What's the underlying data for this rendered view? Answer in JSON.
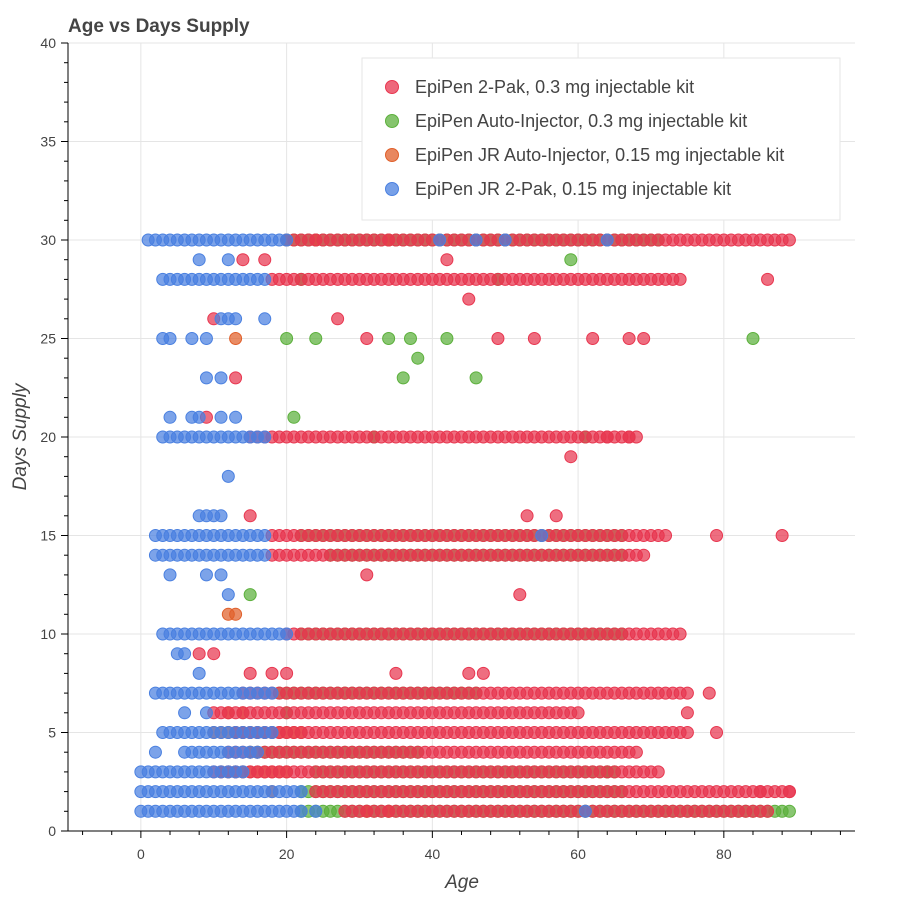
{
  "chart_data": {
    "type": "scatter",
    "title": "Age vs Days Supply",
    "xlabel": "Age",
    "ylabel": "Days Supply",
    "xlim": [
      -10,
      98
    ],
    "ylim": [
      0,
      40
    ],
    "x_ticks": [
      0,
      20,
      40,
      60,
      80
    ],
    "y_ticks": [
      0,
      5,
      10,
      15,
      20,
      25,
      30,
      35,
      40
    ],
    "grid": true,
    "legend_position": "top-right",
    "series": [
      {
        "name": "EpiPen 2-Pak, 0.3 mg injectable kit",
        "color": "#e8364f",
        "bands": [
          {
            "y": 30,
            "from": 20,
            "to": 89
          },
          {
            "y": 28,
            "from": 18,
            "to": 74
          },
          {
            "y": 20,
            "from": 15,
            "to": 68
          },
          {
            "y": 15,
            "from": 18,
            "to": 72
          },
          {
            "y": 14,
            "from": 18,
            "to": 69
          },
          {
            "y": 10,
            "from": 20,
            "to": 74
          },
          {
            "y": 7,
            "from": 14,
            "to": 75
          },
          {
            "y": 6,
            "from": 10,
            "to": 60
          },
          {
            "y": 5,
            "from": 13,
            "to": 75
          },
          {
            "y": 4,
            "from": 12,
            "to": 68
          },
          {
            "y": 3,
            "from": 10,
            "to": 71
          },
          {
            "y": 2,
            "from": 24,
            "to": 89
          },
          {
            "y": 1,
            "from": 28,
            "to": 86
          }
        ],
        "points": [
          {
            "x": 69,
            "y": 33
          },
          {
            "x": 14,
            "y": 29
          },
          {
            "x": 17,
            "y": 29
          },
          {
            "x": 42,
            "y": 29
          },
          {
            "x": 45,
            "y": 27
          },
          {
            "x": 10,
            "y": 26
          },
          {
            "x": 27,
            "y": 26
          },
          {
            "x": 86,
            "y": 28
          },
          {
            "x": 13,
            "y": 23
          },
          {
            "x": 31,
            "y": 25
          },
          {
            "x": 49,
            "y": 25
          },
          {
            "x": 54,
            "y": 25
          },
          {
            "x": 62,
            "y": 25
          },
          {
            "x": 67,
            "y": 25
          },
          {
            "x": 69,
            "y": 25
          },
          {
            "x": 59,
            "y": 19
          },
          {
            "x": 15,
            "y": 16
          },
          {
            "x": 53,
            "y": 16
          },
          {
            "x": 57,
            "y": 16
          },
          {
            "x": 79,
            "y": 15
          },
          {
            "x": 88,
            "y": 15
          },
          {
            "x": 31,
            "y": 13
          },
          {
            "x": 52,
            "y": 12
          },
          {
            "x": 8,
            "y": 9
          },
          {
            "x": 10,
            "y": 9
          },
          {
            "x": 15,
            "y": 8
          },
          {
            "x": 18,
            "y": 8
          },
          {
            "x": 20,
            "y": 8
          },
          {
            "x": 35,
            "y": 8
          },
          {
            "x": 45,
            "y": 8
          },
          {
            "x": 47,
            "y": 8
          },
          {
            "x": 78,
            "y": 7
          },
          {
            "x": 75,
            "y": 6
          },
          {
            "x": 79,
            "y": 5
          },
          {
            "x": 9,
            "y": 21
          },
          {
            "x": 85,
            "y": 2
          },
          {
            "x": 89,
            "y": 2
          },
          {
            "x": 64,
            "y": 20
          },
          {
            "x": 67,
            "y": 20
          }
        ]
      },
      {
        "name": "EpiPen Auto-Injector, 0.3 mg injectable kit",
        "color": "#5cb03c",
        "bands": [
          {
            "y": 30,
            "from": 20,
            "to": 71
          },
          {
            "y": 15,
            "from": 22,
            "to": 66
          },
          {
            "y": 14,
            "from": 26,
            "to": 66
          },
          {
            "y": 10,
            "from": 22,
            "to": 66
          },
          {
            "y": 7,
            "from": 19,
            "to": 46
          },
          {
            "y": 4,
            "from": 15,
            "to": 38
          },
          {
            "y": 3,
            "from": 24,
            "to": 65
          },
          {
            "y": 2,
            "from": 22,
            "to": 66
          },
          {
            "y": 1,
            "from": 22,
            "to": 89
          }
        ],
        "points": [
          {
            "x": 59,
            "y": 29
          },
          {
            "x": 22,
            "y": 28
          },
          {
            "x": 49,
            "y": 28
          },
          {
            "x": 20,
            "y": 25
          },
          {
            "x": 24,
            "y": 25
          },
          {
            "x": 34,
            "y": 25
          },
          {
            "x": 37,
            "y": 25
          },
          {
            "x": 42,
            "y": 25
          },
          {
            "x": 84,
            "y": 25
          },
          {
            "x": 38,
            "y": 24
          },
          {
            "x": 36,
            "y": 23
          },
          {
            "x": 46,
            "y": 23
          },
          {
            "x": 21,
            "y": 21
          },
          {
            "x": 32,
            "y": 20
          },
          {
            "x": 61,
            "y": 20
          },
          {
            "x": 15,
            "y": 12
          },
          {
            "x": 20,
            "y": 6
          },
          {
            "x": 64,
            "y": 3
          }
        ]
      },
      {
        "name": "EpiPen JR Auto-Injector, 0.15 mg injectable kit",
        "color": "#e05f2a",
        "bands": [
          {
            "y": 5,
            "from": 10,
            "to": 22
          },
          {
            "y": 3,
            "from": 11,
            "to": 20
          }
        ],
        "points": [
          {
            "x": 24,
            "y": 30
          },
          {
            "x": 34,
            "y": 30
          },
          {
            "x": 13,
            "y": 25
          },
          {
            "x": 12,
            "y": 11
          },
          {
            "x": 13,
            "y": 11
          },
          {
            "x": 12,
            "y": 6
          },
          {
            "x": 14,
            "y": 6
          },
          {
            "x": 18,
            "y": 2
          },
          {
            "x": 31,
            "y": 1
          },
          {
            "x": 34,
            "y": 1
          }
        ]
      },
      {
        "name": "EpiPen JR 2-Pak, 0.15 mg injectable kit",
        "color": "#4a80e0",
        "bands": [
          {
            "y": 30,
            "from": 1,
            "to": 20
          },
          {
            "y": 28,
            "from": 3,
            "to": 17
          },
          {
            "y": 20,
            "from": 3,
            "to": 17
          },
          {
            "y": 15,
            "from": 2,
            "to": 17
          },
          {
            "y": 14,
            "from": 2,
            "to": 17
          },
          {
            "y": 10,
            "from": 3,
            "to": 20
          },
          {
            "y": 7,
            "from": 2,
            "to": 18
          },
          {
            "y": 5,
            "from": 3,
            "to": 18
          },
          {
            "y": 4,
            "from": 6,
            "to": 16
          },
          {
            "y": 3,
            "from": 0,
            "to": 14
          },
          {
            "y": 2,
            "from": 0,
            "to": 22
          },
          {
            "y": 1,
            "from": 0,
            "to": 22
          }
        ],
        "points": [
          {
            "x": 8,
            "y": 29
          },
          {
            "x": 12,
            "y": 29
          },
          {
            "x": 3,
            "y": 25
          },
          {
            "x": 4,
            "y": 25
          },
          {
            "x": 7,
            "y": 25
          },
          {
            "x": 9,
            "y": 25
          },
          {
            "x": 11,
            "y": 26
          },
          {
            "x": 12,
            "y": 26
          },
          {
            "x": 13,
            "y": 26
          },
          {
            "x": 17,
            "y": 26
          },
          {
            "x": 9,
            "y": 23
          },
          {
            "x": 11,
            "y": 23
          },
          {
            "x": 4,
            "y": 21
          },
          {
            "x": 7,
            "y": 21
          },
          {
            "x": 8,
            "y": 21
          },
          {
            "x": 11,
            "y": 21
          },
          {
            "x": 13,
            "y": 21
          },
          {
            "x": 12,
            "y": 18
          },
          {
            "x": 8,
            "y": 16
          },
          {
            "x": 9,
            "y": 16
          },
          {
            "x": 10,
            "y": 16
          },
          {
            "x": 11,
            "y": 16
          },
          {
            "x": 4,
            "y": 13
          },
          {
            "x": 9,
            "y": 13
          },
          {
            "x": 11,
            "y": 13
          },
          {
            "x": 12,
            "y": 12
          },
          {
            "x": 5,
            "y": 9
          },
          {
            "x": 6,
            "y": 9
          },
          {
            "x": 8,
            "y": 8
          },
          {
            "x": 6,
            "y": 6
          },
          {
            "x": 9,
            "y": 6
          },
          {
            "x": 2,
            "y": 4
          },
          {
            "x": 46,
            "y": 30
          },
          {
            "x": 50,
            "y": 30
          },
          {
            "x": 64,
            "y": 30
          },
          {
            "x": 41,
            "y": 30
          },
          {
            "x": 55,
            "y": 15
          },
          {
            "x": 24,
            "y": 1
          },
          {
            "x": 61,
            "y": 1
          }
        ]
      }
    ]
  }
}
